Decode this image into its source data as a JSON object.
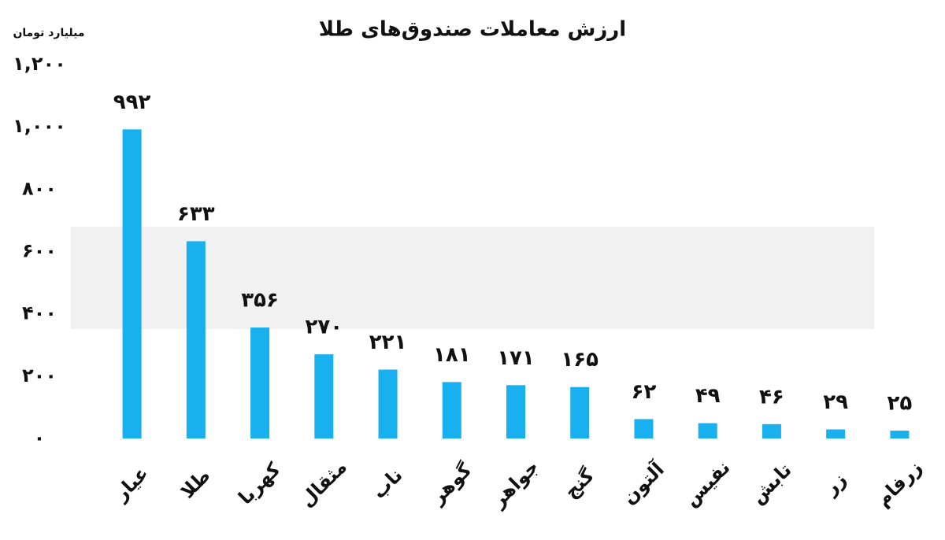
{
  "chart_data": {
    "type": "bar",
    "title": "ارزش معاملات صندوق‌های طلا",
    "y_label": "میلیارد تومان",
    "categories": [
      "عیار",
      "طلا",
      "کهربا",
      "مثقال",
      "ناب",
      "گوهر",
      "جواهر",
      "گنج",
      "آلتون",
      "نفیس",
      "تابش",
      "زر",
      "زرفام"
    ],
    "values": [
      992,
      633,
      356,
      270,
      221,
      181,
      171,
      165,
      62,
      49,
      46,
      29,
      25
    ],
    "value_labels": [
      "۹۹۲",
      "۶۳۳",
      "۳۵۶",
      "۲۷۰",
      "۲۲۱",
      "۱۸۱",
      "۱۷۱",
      "۱۶۵",
      "۶۲",
      "۴۹",
      "۴۶",
      "۲۹",
      "۲۵"
    ],
    "color": "#18b0ee",
    "ylim": [
      0,
      1200
    ],
    "yticks": [
      {
        "value": 0,
        "label": "۰"
      },
      {
        "value": 200,
        "label": "۲۰۰"
      },
      {
        "value": 400,
        "label": "۴۰۰"
      },
      {
        "value": 600,
        "label": "۶۰۰"
      },
      {
        "value": 800,
        "label": "۸۰۰"
      },
      {
        "value": 1000,
        "label": "۱,۰۰۰"
      },
      {
        "value": 1200,
        "label": "۱,۲۰۰"
      }
    ],
    "grid": false
  }
}
